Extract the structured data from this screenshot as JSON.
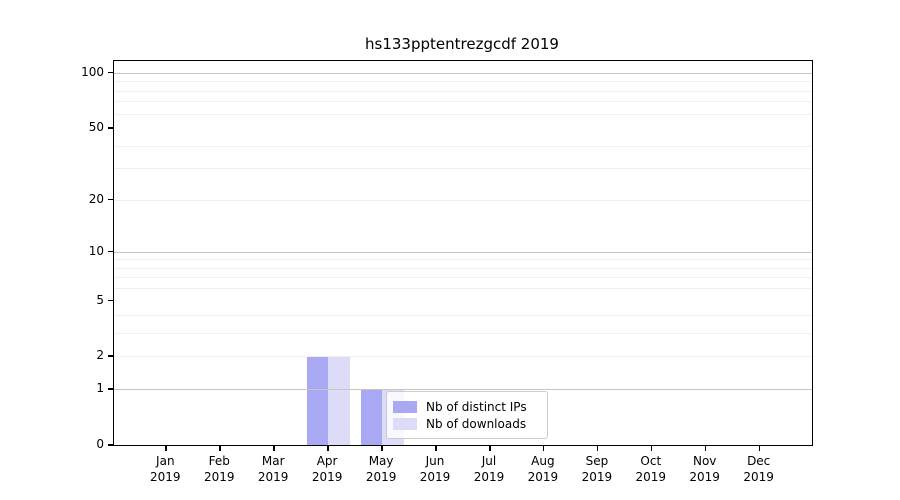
{
  "chart_data": {
    "type": "bar",
    "title": "hs133pptentrezgcdf 2019",
    "xlabel": "",
    "ylabel": "",
    "categories": [
      "Jan",
      "Feb",
      "Mar",
      "Apr",
      "May",
      "Jun",
      "Jul",
      "Aug",
      "Sep",
      "Oct",
      "Nov",
      "Dec"
    ],
    "x_year_line": "2019",
    "series": [
      {
        "name": "Nb of distinct IPs",
        "color": "#a9a9f3",
        "values": [
          0,
          0,
          0,
          2,
          1,
          0,
          0,
          0,
          0,
          0,
          0,
          0
        ]
      },
      {
        "name": "Nb of downloads",
        "color": "#dcdcf9",
        "values": [
          0,
          0,
          0,
          2,
          1,
          0,
          0,
          0,
          0,
          0,
          0,
          0
        ]
      }
    ],
    "yscale": "log1p",
    "ylim": [
      0,
      116
    ],
    "yticks": [
      0,
      1,
      2,
      5,
      10,
      20,
      50,
      100
    ],
    "major_grid_yticks": [
      1,
      10,
      100
    ],
    "minor_grid_yticks": [
      2,
      3,
      4,
      6,
      7,
      8,
      9,
      20,
      30,
      40,
      60,
      70,
      80,
      90
    ],
    "labeled_grid_yticks": [
      2,
      5,
      20,
      50
    ],
    "grid": "horizontal",
    "legend_position": "lower center-right inside plot",
    "background_color": "#ffffff",
    "axis_color": "#000000",
    "major_grid_color": "#c6c6c6",
    "minor_grid_color": "#f0f0f0"
  }
}
